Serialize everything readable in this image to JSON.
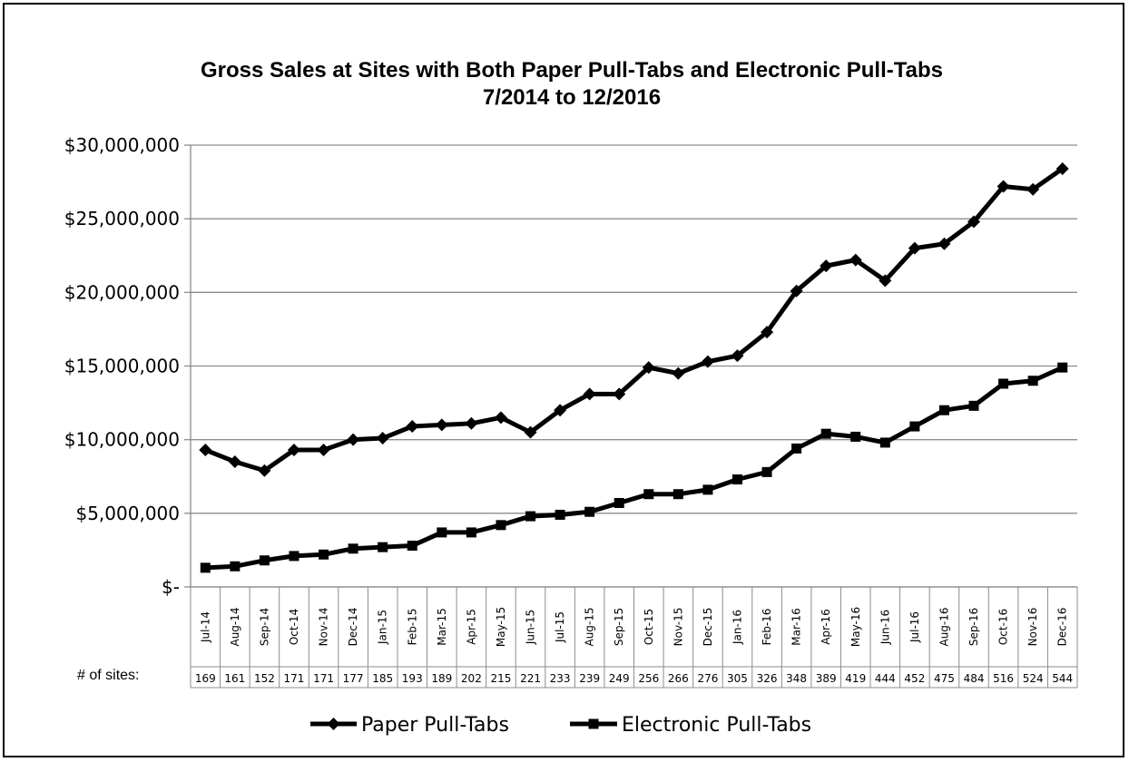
{
  "chart_data": {
    "type": "line",
    "title": "Gross Sales at Sites with Both Paper Pull-Tabs and Electronic Pull-Tabs",
    "subtitle": "7/2014 to 12/2016",
    "xlabel": "",
    "ylabel": "",
    "ylim": [
      0,
      30000000
    ],
    "yticks": [
      0,
      5000000,
      10000000,
      15000000,
      20000000,
      25000000,
      30000000
    ],
    "ytick_labels": [
      "$-",
      "$5,000,000",
      "$10,000,000",
      "$15,000,000",
      "$20,000,000",
      "$25,000,000",
      "$30,000,000"
    ],
    "grid": true,
    "legend_position": "bottom",
    "categories": [
      "Jul-14",
      "Aug-14",
      "Sep-14",
      "Oct-14",
      "Nov-14",
      "Dec-14",
      "Jan-15",
      "Feb-15",
      "Mar-15",
      "Apr-15",
      "May-15",
      "Jun-15",
      "Jul-15",
      "Aug-15",
      "Sep-15",
      "Oct-15",
      "Nov-15",
      "Dec-15",
      "Jan-16",
      "Feb-16",
      "Mar-16",
      "Apr-16",
      "May-16",
      "Jun-16",
      "Jul-16",
      "Aug-16",
      "Sep-16",
      "Oct-16",
      "Nov-16",
      "Dec-16"
    ],
    "sites_label": "# of sites:",
    "sites": [
      169,
      161,
      152,
      171,
      171,
      177,
      185,
      193,
      189,
      202,
      215,
      221,
      233,
      239,
      249,
      256,
      266,
      276,
      305,
      326,
      348,
      389,
      419,
      444,
      452,
      475,
      484,
      516,
      524,
      544
    ],
    "series": [
      {
        "name": "Paper Pull-Tabs",
        "marker": "diamond",
        "color": "#000000",
        "values": [
          9300000,
          8500000,
          7900000,
          9300000,
          9300000,
          10000000,
          10100000,
          10900000,
          11000000,
          11100000,
          11500000,
          10500000,
          12000000,
          13100000,
          13100000,
          14900000,
          14500000,
          15300000,
          15700000,
          17300000,
          20100000,
          21800000,
          22200000,
          20800000,
          23000000,
          23300000,
          24800000,
          27200000,
          27000000,
          28400000
        ]
      },
      {
        "name": "Electronic Pull-Tabs",
        "marker": "square",
        "color": "#000000",
        "values": [
          1300000,
          1400000,
          1800000,
          2100000,
          2200000,
          2600000,
          2700000,
          2800000,
          3700000,
          3700000,
          4200000,
          4800000,
          4900000,
          5100000,
          5700000,
          6300000,
          6300000,
          6600000,
          7300000,
          7800000,
          9400000,
          10400000,
          10200000,
          9800000,
          10900000,
          12000000,
          12300000,
          13800000,
          14000000,
          14900000
        ]
      }
    ]
  }
}
